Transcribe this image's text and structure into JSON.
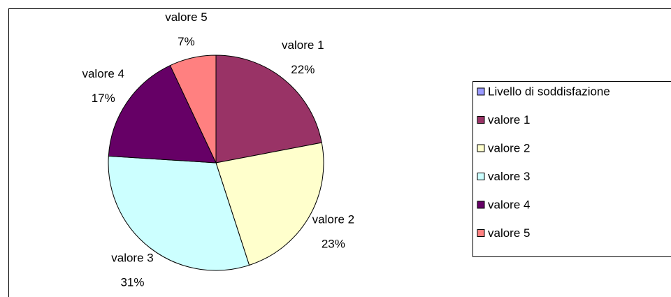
{
  "chart_data": {
    "type": "pie",
    "series_name": "Livello di soddisfazione",
    "series_color": "#9999ff",
    "categories": [
      "valore 1",
      "valore 2",
      "valore 3",
      "valore 4",
      "valore 5"
    ],
    "values": [
      22,
      23,
      31,
      17,
      7
    ],
    "value_labels": [
      "22%",
      "23%",
      "31%",
      "17%",
      "7%"
    ],
    "colors": [
      "#993366",
      "#ffffcc",
      "#ccffff",
      "#660066",
      "#ff8080"
    ],
    "legend": "right"
  }
}
